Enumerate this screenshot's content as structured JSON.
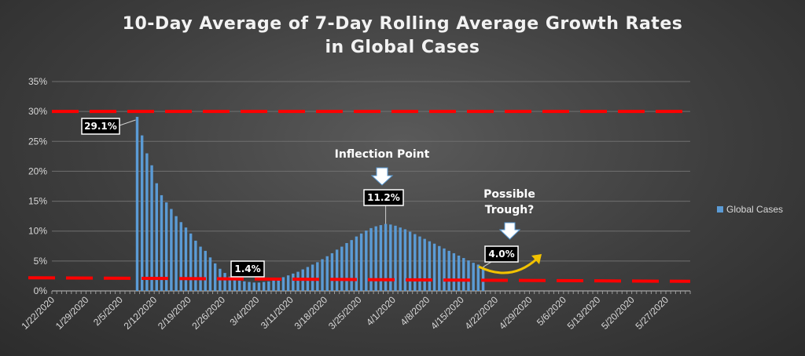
{
  "chart_data": {
    "type": "bar",
    "title_lines": [
      "10-Day Average of 7-Day Rolling Average Growth Rates",
      "in Global Cases"
    ],
    "xlabel": "",
    "ylabel": "",
    "ylim": [
      0,
      35
    ],
    "y_ticks": [
      "0%",
      "5%",
      "10%",
      "15%",
      "20%",
      "25%",
      "30%",
      "35%"
    ],
    "x_ticks": [
      "1/22/2020",
      "1/29/2020",
      "2/5/2020",
      "2/12/2020",
      "2/19/2020",
      "2/26/2020",
      "3/4/2020",
      "3/11/2020",
      "3/18/2020",
      "3/25/2020",
      "4/1/2020",
      "4/8/2020",
      "4/15/2020",
      "4/22/2020",
      "4/29/2020",
      "5/6/2020",
      "5/13/2020",
      "5/20/2020",
      "5/27/2020"
    ],
    "grid": true,
    "legend_position": "right",
    "series": [
      {
        "name": "Global Cases",
        "color": "#5b9bd5",
        "start_date": "2/8/2020",
        "values": [
          29.1,
          26.0,
          23.0,
          21.0,
          18.0,
          16.0,
          14.8,
          13.7,
          12.5,
          11.5,
          10.6,
          9.6,
          8.4,
          7.4,
          6.7,
          5.6,
          4.6,
          3.7,
          3.0,
          2.4,
          2.0,
          1.7,
          1.6,
          1.5,
          1.4,
          1.4,
          1.5,
          1.6,
          1.8,
          2.0,
          2.3,
          2.6,
          2.9,
          3.2,
          3.6,
          4.0,
          4.4,
          4.8,
          5.3,
          5.8,
          6.3,
          6.9,
          7.4,
          8.0,
          8.5,
          9.1,
          9.6,
          10.1,
          10.5,
          10.8,
          11.0,
          11.2,
          11.1,
          10.9,
          10.6,
          10.3,
          9.9,
          9.5,
          9.1,
          8.7,
          8.3,
          7.9,
          7.5,
          7.1,
          6.7,
          6.3,
          5.9,
          5.5,
          5.1,
          4.7,
          4.4,
          4.0
        ]
      }
    ],
    "reference_lines": [
      {
        "type": "horizontal-dashed",
        "color": "#ff0000",
        "value": 30
      },
      {
        "type": "dashed",
        "color": "#ff0000",
        "from_value": 2.2,
        "to_value": 1.6
      }
    ],
    "annotations": [
      {
        "label": "29.1%"
      },
      {
        "label": "1.4%"
      },
      {
        "label": "11.2%"
      },
      {
        "label": "4.0%"
      },
      {
        "label_lines": [
          "Inflection Point"
        ]
      },
      {
        "label_lines": [
          "Possible",
          "Trough?"
        ]
      }
    ]
  }
}
